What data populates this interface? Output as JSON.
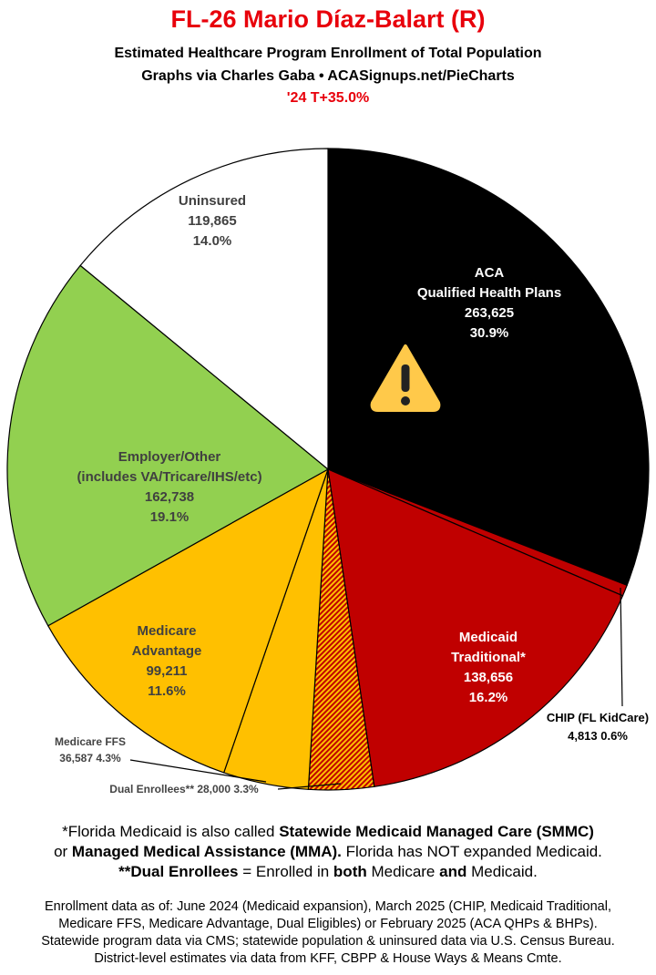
{
  "header": {
    "title": "FL-26 Mario Díaz-Balart (R)",
    "subtitle": "Estimated Healthcare Program Enrollment of Total Population",
    "credit": "Graphs via Charles Gaba  •  ACASignups.net/PieCharts",
    "trump_margin": "'24 T+35.0%"
  },
  "chart_data": {
    "type": "pie",
    "start": "top, clockwise",
    "slices": [
      {
        "name": "ACA Qualified Health Plans",
        "value": 263625,
        "percent": 30.9,
        "color": "#000000",
        "label": [
          "ACA",
          "Qualified Health Plans",
          "263,625",
          "30.9%"
        ]
      },
      {
        "name": "CHIP (FL KidCare)",
        "value": 4813,
        "percent": 0.6,
        "color": "#C00000",
        "label": [
          "CHIP (FL KidCare)",
          "4,813 0.6%"
        ]
      },
      {
        "name": "Medicaid Traditional*",
        "value": 138656,
        "percent": 16.2,
        "color": "#C00000",
        "label": [
          "Medicaid",
          "Traditional*",
          "138,656",
          "16.2%"
        ]
      },
      {
        "name": "Dual Enrollees**",
        "value": 28000,
        "percent": 3.3,
        "color": "hatched red/yellow",
        "label": [
          "Dual Enrollees** 28,000 3.3%"
        ]
      },
      {
        "name": "Medicare FFS",
        "value": 36587,
        "percent": 4.3,
        "color": "#FFC000",
        "label": [
          "Medicare FFS",
          "36,587 4.3%"
        ]
      },
      {
        "name": "Medicare Advantage",
        "value": 99211,
        "percent": 11.6,
        "color": "#FFC000",
        "label": [
          "Medicare",
          "Advantage",
          "99,211",
          "11.6%"
        ]
      },
      {
        "name": "Employer/Other",
        "value": 162738,
        "percent": 19.1,
        "color": "#92D050",
        "label": [
          "Employer/Other",
          "(includes VA/Tricare/IHS/etc)",
          "162,738",
          "19.1%"
        ]
      },
      {
        "name": "Uninsured",
        "value": 119865,
        "percent": 14.0,
        "color": "#FFFFFF",
        "label": [
          "Uninsured",
          "119,865",
          "14.0%"
        ]
      }
    ],
    "annotation_icon": "warning-icon"
  },
  "notes": {
    "line1_a": "*Florida Medicaid is also called ",
    "line1_b": "Statewide Medicaid Managed Care (SMMC)",
    "line2_a": "or ",
    "line2_b": "Managed Medical Assistance (MMA).",
    "line2_c": " Florida has NOT expanded Medicaid.",
    "line3_a": "**Dual Enrollees",
    "line3_b": " = Enrolled in ",
    "line3_c": "both",
    "line3_d": " Medicare ",
    "line3_e": "and",
    "line3_f": " Medicaid."
  },
  "footer": [
    "Enrollment data as of: June 2024 (Medicaid expansion), March 2025 (CHIP, Medicaid Traditional,",
    "Medicare FFS, Medicare Advantage, Dual Eligibles) or February 2025 (ACA QHPs & BHPs).",
    "Statewide program data via CMS; statewide population & uninsured data via U.S. Census Bureau.",
    "District-level estimates via data from KFF, CBPP & House Ways & Means Cmte."
  ]
}
